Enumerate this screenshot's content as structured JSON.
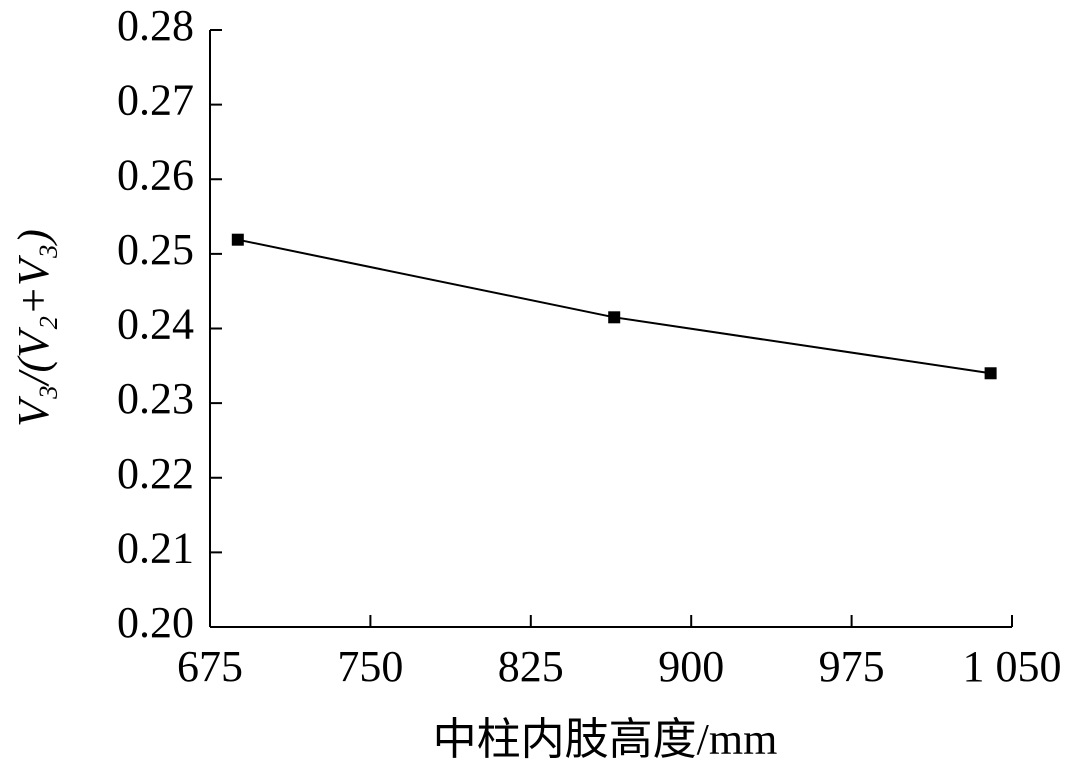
{
  "chart_data": {
    "type": "line",
    "x_label": "中柱内肢高度/mm",
    "y_label": "V₃/(V₂+V₃)",
    "x": [
      688,
      864,
      1040
    ],
    "series": [
      {
        "color": "#000000",
        "values": [
          0.2519,
          0.2415,
          0.234
        ]
      }
    ],
    "xlim": [
      675,
      1050
    ],
    "xticks": [
      675,
      750,
      825,
      900,
      975,
      {
        "value": 1050,
        "label": "1 050"
      }
    ],
    "ylim": [
      0.2,
      0.28
    ],
    "yticks": [
      {
        "value": 0.2,
        "label": "0.20"
      },
      0.21,
      0.22,
      0.23,
      0.24,
      0.25,
      0.26,
      0.27,
      0.28
    ],
    "marker": "square"
  }
}
